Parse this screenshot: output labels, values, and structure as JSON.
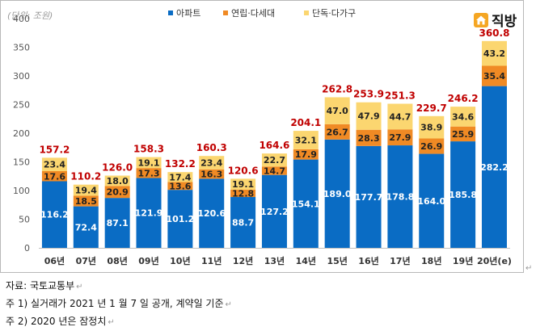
{
  "brand": {
    "name": "직방",
    "icon": "house-icon",
    "color": "#f5a623"
  },
  "notes": [
    {
      "text": "자료: 국토교통부",
      "mark": "↵"
    },
    {
      "text": "주 1) 실거래가 2021 년 1 월 7 일 공개, 계약일 기준",
      "mark": "↵"
    },
    {
      "text": "주 2) 2020 년은 잠정치",
      "mark": "↵"
    }
  ],
  "edge_mark": "↵",
  "chart_data": {
    "type": "bar",
    "stacked": true,
    "unit_label": "(단위: 조원)",
    "categories": [
      "06년",
      "07년",
      "08년",
      "09년",
      "10년",
      "11년",
      "12년",
      "13년",
      "14년",
      "15년",
      "16년",
      "17년",
      "18년",
      "19년",
      "20년(e)"
    ],
    "series": [
      {
        "name": "아파트",
        "color": "#0a6cc4",
        "values": [
          116.2,
          72.4,
          87.1,
          121.9,
          101.2,
          120.6,
          88.7,
          127.2,
          154.1,
          189.0,
          177.7,
          178.8,
          164.0,
          185.8,
          282.2
        ]
      },
      {
        "name": "연립·다세대",
        "color": "#f08a24",
        "values": [
          17.6,
          18.5,
          20.9,
          17.3,
          13.6,
          16.3,
          12.8,
          14.7,
          17.9,
          26.7,
          28.3,
          27.9,
          26.9,
          25.9,
          35.4
        ]
      },
      {
        "name": "단독·다가구",
        "color": "#fbd670",
        "values": [
          23.4,
          19.4,
          18.0,
          19.1,
          17.4,
          23.4,
          19.1,
          22.7,
          32.1,
          47.0,
          47.9,
          44.7,
          38.9,
          34.6,
          43.2
        ]
      }
    ],
    "totals": [
      157.2,
      110.2,
      126.0,
      158.3,
      132.2,
      160.3,
      120.6,
      164.6,
      204.1,
      262.8,
      253.9,
      251.3,
      229.7,
      246.2,
      360.8
    ],
    "total_color": "#c00000",
    "ylim": [
      0,
      400
    ],
    "yticks": [
      0,
      50,
      100,
      150,
      200,
      250,
      300,
      350,
      400
    ],
    "legend_position": "top-center",
    "grid": false
  }
}
